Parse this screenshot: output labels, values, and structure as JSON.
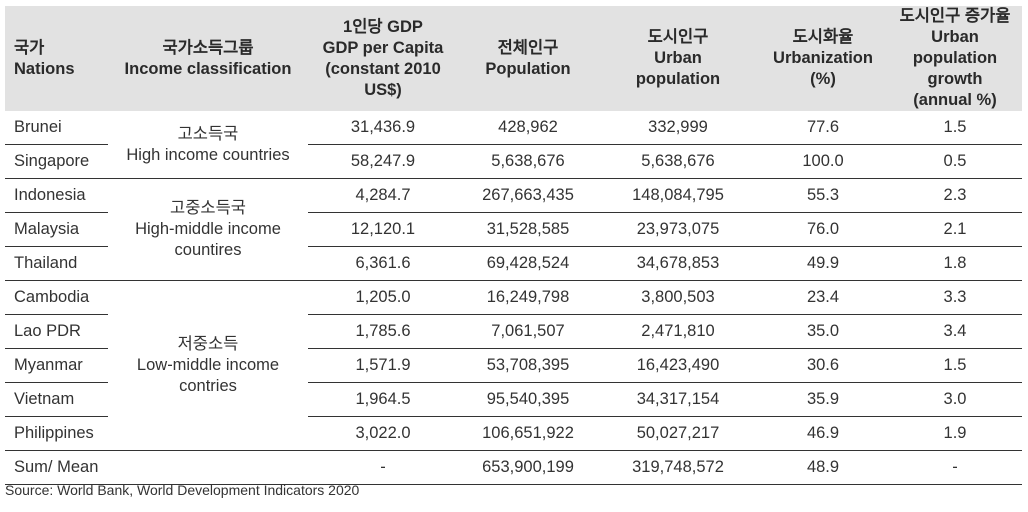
{
  "headers": {
    "nation": [
      "국가",
      "Nations"
    ],
    "income": [
      "국가소득그룹",
      "Income classification"
    ],
    "gdp": [
      "1인당 GDP",
      "GDP per Capita",
      "(constant 2010",
      "US$)"
    ],
    "population": [
      "전체인구",
      "Population"
    ],
    "urban": [
      "도시인구",
      "Urban",
      "population"
    ],
    "urbanization": [
      "도시화율",
      "Urbanization",
      "(%)"
    ],
    "growth": [
      "도시인구 증가율",
      "Urban population",
      "growth",
      "(annual %)"
    ]
  },
  "groups": [
    {
      "ko": "고소득국",
      "en": [
        "High income countries"
      ]
    },
    {
      "ko": "고중소득국",
      "en": [
        "High-middle income",
        "countires"
      ]
    },
    {
      "ko": "저중소득",
      "en": [
        "Low-middle income",
        "contries"
      ]
    }
  ],
  "rows": [
    [
      "Brunei",
      "31,436.9",
      "428,962",
      "332,999",
      "77.6",
      "1.5"
    ],
    [
      "Singapore",
      "58,247.9",
      "5,638,676",
      "5,638,676",
      "100.0",
      "0.5"
    ],
    [
      "Indonesia",
      "4,284.7",
      "267,663,435",
      "148,084,795",
      "55.3",
      "2.3"
    ],
    [
      "Malaysia",
      "12,120.1",
      "31,528,585",
      "23,973,075",
      "76.0",
      "2.1"
    ],
    [
      "Thailand",
      "6,361.6",
      "69,428,524",
      "34,678,853",
      "49.9",
      "1.8"
    ],
    [
      "Cambodia",
      "1,205.0",
      "16,249,798",
      "3,800,503",
      "23.4",
      "3.3"
    ],
    [
      "Lao PDR",
      "1,785.6",
      "7,061,507",
      "2,471,810",
      "35.0",
      "3.4"
    ],
    [
      "Myanmar",
      "1,571.9",
      "53,708,395",
      "16,423,490",
      "30.6",
      "1.5"
    ],
    [
      "Vietnam",
      "1,964.5",
      "95,540,395",
      "34,317,154",
      "35.9",
      "3.0"
    ],
    [
      "Philippines",
      "3,022.0",
      "106,651,922",
      "50,027,217",
      "46.9",
      "1.9"
    ]
  ],
  "sum": [
    "Sum/ Mean",
    "-",
    "653,900,199",
    "319,748,572",
    "48.9",
    "-"
  ],
  "source": "Source: World Bank, World Development Indicators 2020"
}
